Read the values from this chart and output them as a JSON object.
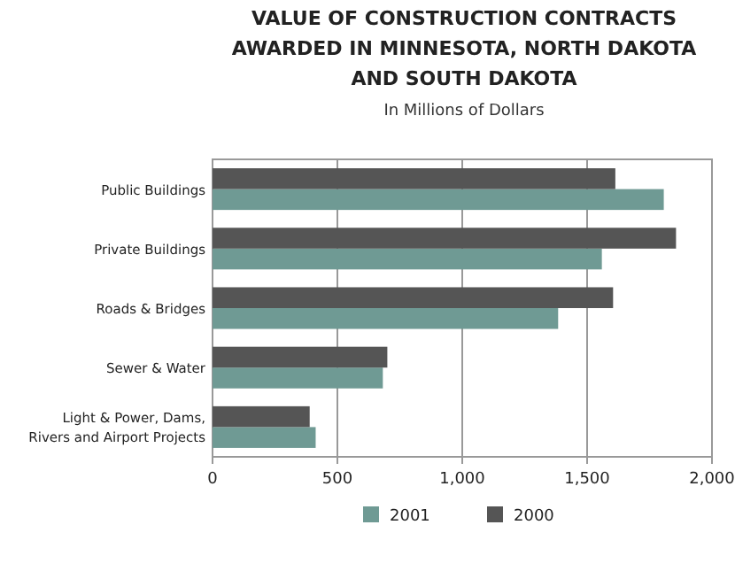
{
  "chart_data": {
    "type": "bar",
    "orientation": "horizontal",
    "title": "VALUE OF CONSTRUCTION CONTRACTS AWARDED IN MINNESOTA, NORTH DAKOTA AND SOUTH DAKOTA",
    "subtitle": "In Millions of Dollars",
    "categories": [
      "Public Buildings",
      "Private Buildings",
      "Roads & Bridges",
      "Sewer & Water",
      "Light & Power, Dams, Rivers and Airport Projects"
    ],
    "series": [
      {
        "name": "2001",
        "color": "#6f9a94",
        "values": [
          1807,
          1559,
          1384,
          682,
          413
        ]
      },
      {
        "name": "2000",
        "color": "#555555",
        "values": [
          1613,
          1856,
          1604,
          700,
          389
        ]
      }
    ],
    "xlim": [
      0,
      2000
    ],
    "xticks": [
      0,
      500,
      {
        "value": 1000,
        "label": "1,000"
      },
      {
        "value": 1500,
        "label": "1,500"
      },
      {
        "value": 2000,
        "label": "2,000"
      }
    ],
    "grid": "x",
    "legend": "bottom"
  }
}
